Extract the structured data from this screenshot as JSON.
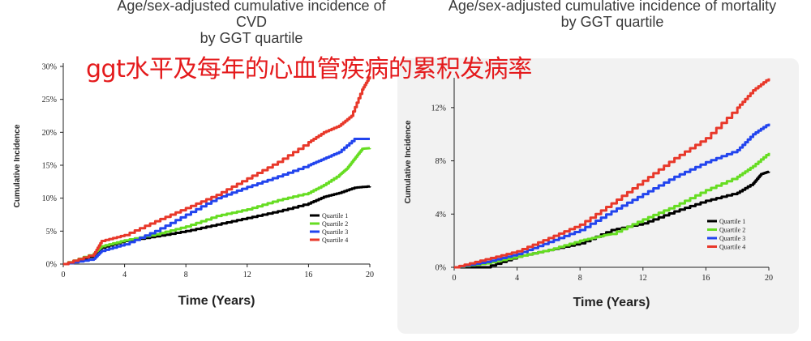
{
  "overlay_text": "ggt水平及每年的心血管疾病的累积发病率",
  "chart_data": [
    {
      "type": "line",
      "title": "Age/sex-adjusted cumulative incidence of CVD\nby GGT quartile",
      "xlabel": "Time (Years)",
      "ylabel": "Cumulative Incidence",
      "xlim": [
        0,
        20
      ],
      "ylim": [
        0,
        30
      ],
      "xticks": [
        0,
        4,
        8,
        12,
        16,
        20
      ],
      "yticks": [
        0,
        5,
        10,
        15,
        20,
        25,
        30
      ],
      "ytick_labels": [
        "0%",
        "5%",
        "10%",
        "15%",
        "20%",
        "25%",
        "30%"
      ],
      "legend": "bottom-right",
      "series": [
        {
          "name": "Quartile 1",
          "color": "#000000",
          "x": [
            0,
            2,
            2.5,
            4,
            6,
            8,
            10,
            12,
            14,
            16,
            17,
            18,
            19,
            20
          ],
          "y": [
            0,
            1.3,
            2.5,
            3.5,
            4.2,
            5.0,
            6.0,
            7.0,
            8.0,
            9.2,
            10.2,
            10.8,
            11.6,
            11.8
          ]
        },
        {
          "name": "Quartile 2",
          "color": "#66dd22",
          "x": [
            0,
            2,
            2.5,
            4,
            6,
            8,
            10,
            12,
            14,
            16,
            17,
            18,
            18.5,
            19,
            19.5,
            20
          ],
          "y": [
            0,
            1.6,
            2.7,
            3.6,
            4.5,
            5.7,
            7.3,
            8.3,
            9.7,
            10.8,
            12.0,
            13.5,
            14.5,
            16.0,
            17.5,
            17.6
          ]
        },
        {
          "name": "Quartile 3",
          "color": "#2244ee",
          "x": [
            0,
            2,
            2.5,
            4,
            6,
            8,
            10,
            12,
            14,
            16,
            17,
            18,
            19,
            20
          ],
          "y": [
            0,
            0.8,
            2.0,
            3.0,
            5.0,
            7.5,
            10.0,
            11.7,
            13.3,
            15.0,
            16.0,
            17.0,
            19.0,
            19.0
          ]
        },
        {
          "name": "Quartile 4",
          "color": "#e8382a",
          "x": [
            0,
            2,
            2.5,
            4,
            6,
            8,
            10,
            12,
            14,
            16,
            17,
            18,
            18.8,
            19.5,
            20
          ],
          "y": [
            0,
            1.5,
            3.5,
            4.4,
            6.5,
            8.5,
            10.5,
            13.0,
            15.5,
            18.5,
            20.0,
            21.0,
            22.5,
            26.5,
            28.5
          ]
        }
      ]
    },
    {
      "type": "line",
      "title": "Age/sex-adjusted cumulative incidence of mortality\nby GGT quartile",
      "xlabel": "Time (Years)",
      "ylabel": "Cumulative Incidence",
      "xlim": [
        0,
        20
      ],
      "ylim": [
        0,
        14
      ],
      "xticks": [
        0,
        4,
        8,
        12,
        16,
        20
      ],
      "yticks": [
        0,
        4,
        8,
        12
      ],
      "ytick_labels": [
        "0%",
        "4%",
        "8%",
        "12%"
      ],
      "legend": "bottom-right",
      "series": [
        {
          "name": "Quartile 1",
          "color": "#000000",
          "x": [
            0,
            2,
            4,
            6,
            8,
            10,
            12,
            14,
            16,
            18,
            19,
            19.5,
            20
          ],
          "y": [
            0,
            0,
            0.8,
            1.3,
            1.8,
            2.8,
            3.3,
            4.2,
            5.0,
            5.6,
            6.3,
            7.0,
            7.2
          ]
        },
        {
          "name": "Quartile 2",
          "color": "#66dd22",
          "x": [
            0,
            2,
            4,
            6,
            8,
            9.5,
            10,
            12,
            14,
            16,
            18,
            19,
            20
          ],
          "y": [
            0,
            0.3,
            0.8,
            1.3,
            2.0,
            2.4,
            2.5,
            3.6,
            4.6,
            5.8,
            6.8,
            7.6,
            8.6
          ]
        },
        {
          "name": "Quartile 3",
          "color": "#2244ee",
          "x": [
            0,
            2,
            4,
            6,
            8,
            10,
            12,
            14,
            16,
            18,
            19,
            20
          ],
          "y": [
            0,
            0.4,
            1.0,
            1.9,
            2.8,
            4.2,
            5.5,
            6.8,
            7.9,
            8.8,
            10.0,
            10.8
          ]
        },
        {
          "name": "Quartile 4",
          "color": "#e8382a",
          "x": [
            0,
            2,
            4,
            6,
            8,
            10,
            12,
            14,
            16,
            18,
            19,
            20
          ],
          "y": [
            0,
            0.6,
            1.2,
            2.2,
            3.2,
            4.8,
            6.5,
            8.2,
            9.7,
            12.0,
            13.3,
            14.2
          ]
        }
      ]
    }
  ]
}
